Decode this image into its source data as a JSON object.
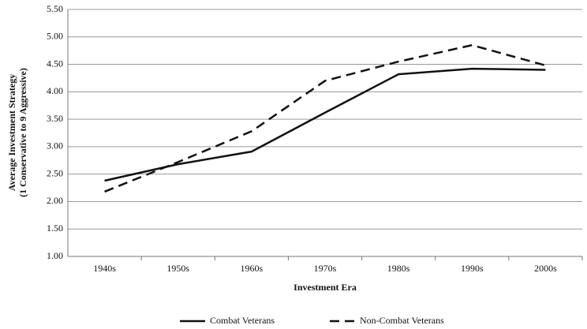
{
  "chart_data": {
    "type": "line",
    "x_label": "Investment Era",
    "y_label": [
      "Average Investment Strategy",
      "(1 Conservative to 9 Aggressive)"
    ],
    "categories": [
      "1940s",
      "1950s",
      "1960s",
      "1970s",
      "1980s",
      "1990s",
      "2000s"
    ],
    "series": [
      {
        "name": "Combat Veterans",
        "color": "#111111",
        "dash": "solid",
        "values": [
          2.38,
          2.68,
          2.91,
          3.62,
          4.32,
          4.42,
          4.4
        ]
      },
      {
        "name": "Non-Combat Veterans",
        "color": "#111111",
        "dash": "dashed",
        "values": [
          2.18,
          2.72,
          3.28,
          4.2,
          4.55,
          4.85,
          4.48
        ]
      }
    ],
    "ylim": [
      1.0,
      5.5
    ],
    "yticks": [
      {
        "value": 1.0,
        "label": "1.00"
      },
      {
        "value": 1.5,
        "label": "1.50"
      },
      {
        "value": 2.0,
        "label": "2.00"
      },
      {
        "value": 2.5,
        "label": "2.50"
      },
      {
        "value": 3.0,
        "label": "3.00"
      },
      {
        "value": 3.5,
        "label": "3.50"
      },
      {
        "value": 4.0,
        "label": "4.00"
      },
      {
        "value": 4.5,
        "label": "4.50"
      },
      {
        "value": 5.0,
        "label": "5.00"
      },
      {
        "value": 5.5,
        "label": "5.50"
      }
    ],
    "grid": true,
    "legend": "bottom"
  }
}
